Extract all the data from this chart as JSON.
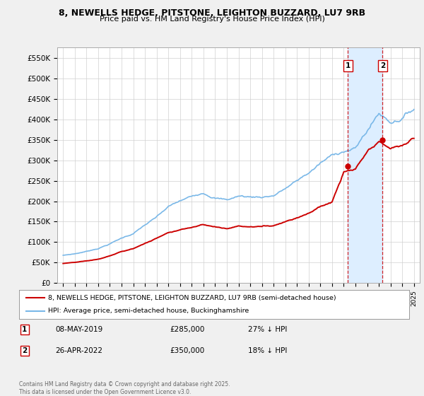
{
  "title": "8, NEWELLS HEDGE, PITSTONE, LEIGHTON BUZZARD, LU7 9RB",
  "subtitle": "Price paid vs. HM Land Registry's House Price Index (HPI)",
  "hpi_label": "HPI: Average price, semi-detached house, Buckinghamshire",
  "property_label": "8, NEWELLS HEDGE, PITSTONE, LEIGHTON BUZZARD, LU7 9RB (semi-detached house)",
  "footer": "Contains HM Land Registry data © Crown copyright and database right 2025.\nThis data is licensed under the Open Government Licence v3.0.",
  "hpi_color": "#7ab8e8",
  "property_color": "#cc0000",
  "vline_color": "#cc0000",
  "shade_color": "#ddeeff",
  "background_color": "#f0f0f0",
  "plot_bg_color": "#ffffff",
  "ylim": [
    0,
    575000
  ],
  "yticks": [
    0,
    50000,
    100000,
    150000,
    200000,
    250000,
    300000,
    350000,
    400000,
    450000,
    500000,
    550000
  ],
  "ytick_labels": [
    "£0",
    "£50K",
    "£100K",
    "£150K",
    "£200K",
    "£250K",
    "£300K",
    "£350K",
    "£400K",
    "£450K",
    "£500K",
    "£550K"
  ],
  "sale1_x": 2019.36,
  "sale1_y": 285000,
  "sale2_x": 2022.32,
  "sale2_y": 350000,
  "sale1_label": "08-MAY-2019",
  "sale2_label": "26-APR-2022",
  "sale1_pct": "27% ↓ HPI",
  "sale2_pct": "18% ↓ HPI",
  "xlim": [
    1994.5,
    2025.5
  ]
}
